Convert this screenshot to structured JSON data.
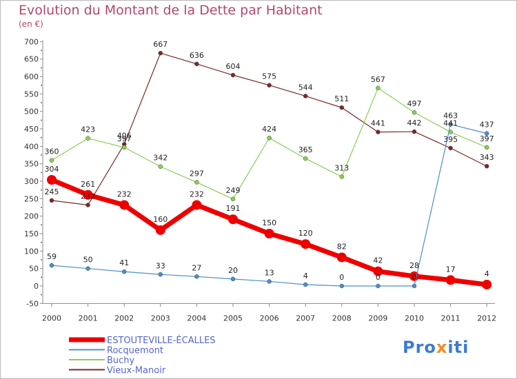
{
  "title": "Evolution du Montant de la Dette par Habitant",
  "unit": "(en €)",
  "logo": {
    "text": "Proxiti",
    "parts": [
      "Pro",
      "x",
      "iti"
    ]
  },
  "chart_data": {
    "type": "line",
    "title": "Evolution du Montant de la Dette par Habitant",
    "ylabel": "(en €)",
    "xlabel": "",
    "ylim": [
      -50,
      700
    ],
    "yticks": [
      -50,
      0,
      50,
      100,
      150,
      200,
      250,
      300,
      350,
      400,
      450,
      500,
      550,
      600,
      650,
      700
    ],
    "ytick_labels": [
      "-50",
      "0",
      "50",
      "100",
      "150",
      "200",
      "250",
      "300",
      "350",
      "400",
      "450",
      "500",
      "550",
      "600",
      "650",
      "700"
    ],
    "categories": [
      "2000",
      "2001",
      "2002",
      "2003",
      "2004",
      "2005",
      "2006",
      "2007",
      "2008",
      "2009",
      "2010",
      "2011",
      "2012"
    ],
    "grid": false,
    "legend": "bottom-left",
    "series": [
      {
        "name": "ESTOUTEVILLE-ÉCALLES",
        "color": "#ee0000",
        "width": 7,
        "marker": 7,
        "values": [
          304,
          261,
          232,
          160,
          232,
          191,
          150,
          120,
          82,
          42,
          28,
          17,
          4
        ],
        "labels": [
          "304",
          "261",
          "232",
          "160",
          "232",
          "191",
          "150",
          "120",
          "82",
          "42",
          "28",
          "17",
          "4"
        ]
      },
      {
        "name": "Rocquemont",
        "color": "#4a90c8",
        "width": 1.2,
        "marker": 3,
        "values": [
          59,
          50,
          41,
          33,
          27,
          20,
          13,
          4,
          0,
          0,
          0,
          463,
          437
        ],
        "labels": [
          "59",
          "50",
          "41",
          "33",
          "27",
          "20",
          "13",
          "4",
          "0",
          "0",
          "0",
          "463",
          "437"
        ]
      },
      {
        "name": "Buchy",
        "color": "#88d050",
        "width": 1.2,
        "marker": 3,
        "values": [
          360,
          423,
          397,
          342,
          297,
          249,
          424,
          365,
          313,
          567,
          497,
          441,
          397
        ],
        "labels": [
          "360",
          "423",
          "397",
          "342",
          "297",
          "249",
          "424",
          "365",
          "313",
          "567",
          "497",
          "441",
          "397"
        ]
      },
      {
        "name": "Vieux-Manoir",
        "color": "#7a2828",
        "width": 1.2,
        "marker": 3,
        "values": [
          245,
          232,
          406,
          667,
          636,
          604,
          575,
          544,
          511,
          441,
          442,
          395,
          343
        ],
        "labels": [
          "245",
          "232",
          "406",
          "667",
          "636",
          "604",
          "575",
          "544",
          "511",
          "441",
          "442",
          "395",
          "343"
        ]
      }
    ]
  }
}
